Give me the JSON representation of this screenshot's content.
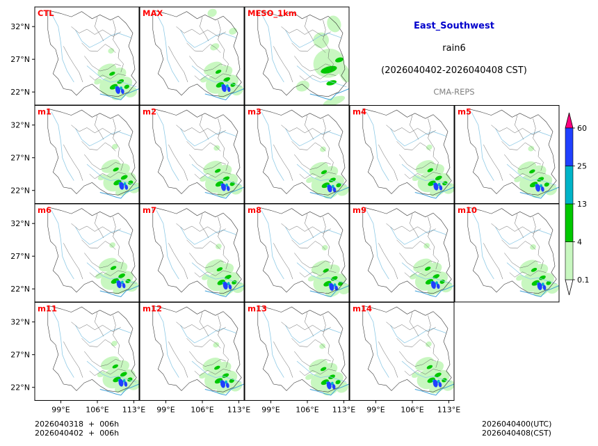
{
  "chart_data": {
    "type": "heatmap",
    "title": "East_Southwest",
    "variable": "rain6",
    "period": "(2026040402-2026040408 CST)",
    "source": "CMA-REPS",
    "panels": [
      "CTL",
      "MAX",
      "MESO_1km",
      "m1",
      "m2",
      "m3",
      "m4",
      "m5",
      "m6",
      "m7",
      "m8",
      "m9",
      "m10",
      "m11",
      "m12",
      "m13",
      "m14"
    ],
    "x_ticks": [
      "99°E",
      "106°E",
      "113°E"
    ],
    "y_ticks": [
      "32°N",
      "27°N",
      "22°N"
    ],
    "xlim": [
      94,
      114
    ],
    "ylim": [
      20,
      35
    ],
    "colorbar": {
      "levels": [
        "0.1",
        "4",
        "13",
        "25",
        "60"
      ],
      "colors": [
        "#ffffff",
        "#c8f7c0",
        "#00c800",
        "#00b4c8",
        "#2040ff",
        "#ff007f"
      ]
    },
    "grid": false
  },
  "footer": {
    "init_utc_line": "2026040318  +  006h",
    "init_cst_line": "2026040402  +  006h",
    "valid_utc": "2026040400(UTC)",
    "valid_cst": "2026040408(CST)"
  }
}
